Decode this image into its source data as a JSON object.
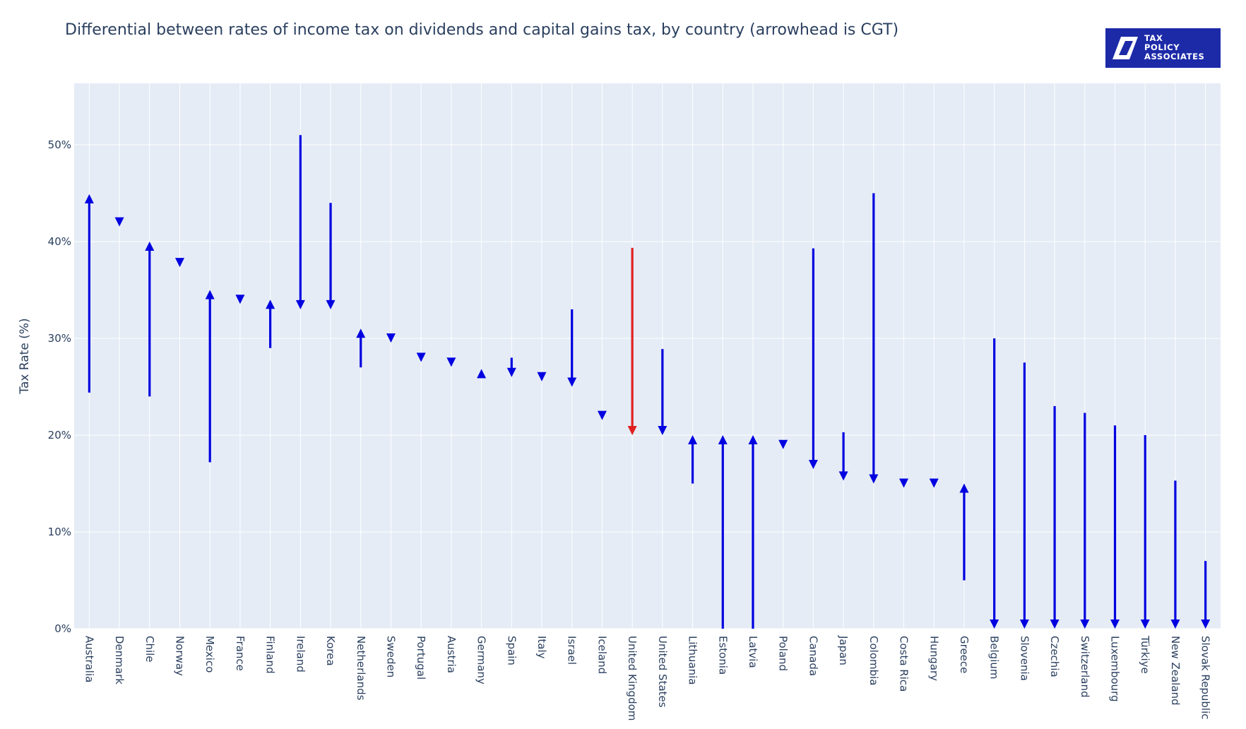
{
  "logo": {
    "line1": "TAX",
    "line2": "POLICY",
    "line3": "ASSOCIATES",
    "bg_color": "#1c2aa8"
  },
  "chart_data": {
    "type": "arrow-range",
    "title": "Differential between rates of income tax on dividends and capital gains tax, by country (arrowhead is CGT)",
    "xlabel": "",
    "ylabel": "Tax Rate (%)",
    "ylim": [
      0,
      56
    ],
    "yticks": [
      0,
      10,
      20,
      30,
      40,
      50
    ],
    "ytick_labels": [
      "0%",
      "10%",
      "20%",
      "30%",
      "40%",
      "50%"
    ],
    "grid": true,
    "series": [
      {
        "points": [
          {
            "country": "Australia",
            "dividend": 24.4,
            "cgt": 44.9,
            "color": "#0000e0"
          },
          {
            "country": "Denmark",
            "dividend": 42.0,
            "cgt": 42.0,
            "color": "#0000e0"
          },
          {
            "country": "Chile",
            "dividend": 24.0,
            "cgt": 40.0,
            "color": "#0000e0"
          },
          {
            "country": "Norway",
            "dividend": 37.8,
            "cgt": 37.8,
            "color": "#0000e0"
          },
          {
            "country": "Mexico",
            "dividend": 17.2,
            "cgt": 35.0,
            "color": "#0000e0"
          },
          {
            "country": "France",
            "dividend": 34.0,
            "cgt": 34.0,
            "color": "#0000e0"
          },
          {
            "country": "Finland",
            "dividend": 29.0,
            "cgt": 34.0,
            "color": "#0000e0"
          },
          {
            "country": "Ireland",
            "dividend": 51.0,
            "cgt": 33.0,
            "color": "#0000e0"
          },
          {
            "country": "Korea",
            "dividend": 44.0,
            "cgt": 33.0,
            "color": "#0000e0"
          },
          {
            "country": "Netherlands",
            "dividend": 27.0,
            "cgt": 31.0,
            "color": "#0000e0"
          },
          {
            "country": "Sweden",
            "dividend": 30.0,
            "cgt": 30.0,
            "color": "#0000e0"
          },
          {
            "country": "Portugal",
            "dividend": 28.0,
            "cgt": 28.0,
            "color": "#0000e0"
          },
          {
            "country": "Austria",
            "dividend": 27.5,
            "cgt": 27.5,
            "color": "#0000e0"
          },
          {
            "country": "Germany",
            "dividend": 26.4,
            "cgt": 26.4,
            "color": "#0000e0"
          },
          {
            "country": "Spain",
            "dividend": 28.0,
            "cgt": 26.0,
            "color": "#0000e0"
          },
          {
            "country": "Italy",
            "dividend": 26.0,
            "cgt": 26.0,
            "color": "#0000e0"
          },
          {
            "country": "Israel",
            "dividend": 33.0,
            "cgt": 25.0,
            "color": "#0000e0"
          },
          {
            "country": "Iceland",
            "dividend": 22.0,
            "cgt": 22.0,
            "color": "#0000e0"
          },
          {
            "country": "United Kingdom",
            "dividend": 39.35,
            "cgt": 20.0,
            "color": "#e02020"
          },
          {
            "country": "United States",
            "dividend": 28.9,
            "cgt": 20.0,
            "color": "#0000e0"
          },
          {
            "country": "Lithuania",
            "dividend": 15.0,
            "cgt": 20.0,
            "color": "#0000e0"
          },
          {
            "country": "Estonia",
            "dividend": 0.0,
            "cgt": 20.0,
            "color": "#0000e0"
          },
          {
            "country": "Latvia",
            "dividend": 0.0,
            "cgt": 20.0,
            "color": "#0000e0"
          },
          {
            "country": "Poland",
            "dividend": 19.0,
            "cgt": 19.0,
            "color": "#0000e0"
          },
          {
            "country": "Canada",
            "dividend": 39.3,
            "cgt": 16.5,
            "color": "#0000e0"
          },
          {
            "country": "Japan",
            "dividend": 20.3,
            "cgt": 15.3,
            "color": "#0000e0"
          },
          {
            "country": "Colombia",
            "dividend": 45.0,
            "cgt": 15.0,
            "color": "#0000e0"
          },
          {
            "country": "Costa Rica",
            "dividend": 15.0,
            "cgt": 15.0,
            "color": "#0000e0"
          },
          {
            "country": "Hungary",
            "dividend": 15.0,
            "cgt": 15.0,
            "color": "#0000e0"
          },
          {
            "country": "Greece",
            "dividend": 5.0,
            "cgt": 15.0,
            "color": "#0000e0"
          },
          {
            "country": "Belgium",
            "dividend": 30.0,
            "cgt": 0.0,
            "color": "#0000e0"
          },
          {
            "country": "Slovenia",
            "dividend": 27.5,
            "cgt": 0.0,
            "color": "#0000e0"
          },
          {
            "country": "Czechia",
            "dividend": 23.0,
            "cgt": 0.0,
            "color": "#0000e0"
          },
          {
            "country": "Switzerland",
            "dividend": 22.3,
            "cgt": 0.0,
            "color": "#0000e0"
          },
          {
            "country": "Luxembourg",
            "dividend": 21.0,
            "cgt": 0.0,
            "color": "#0000e0"
          },
          {
            "country": "Türkiye",
            "dividend": 20.0,
            "cgt": 0.0,
            "color": "#0000e0"
          },
          {
            "country": "New Zealand",
            "dividend": 15.3,
            "cgt": 0.0,
            "color": "#0000e0"
          },
          {
            "country": "Slovak Republic",
            "dividend": 7.0,
            "cgt": 0.0,
            "color": "#0000e0"
          }
        ]
      }
    ],
    "colors": {
      "plot_bg": "#e5ecf6",
      "grid": "#ffffff",
      "default_arrow": "#0000e0",
      "highlight_arrow": "#e02020"
    }
  }
}
